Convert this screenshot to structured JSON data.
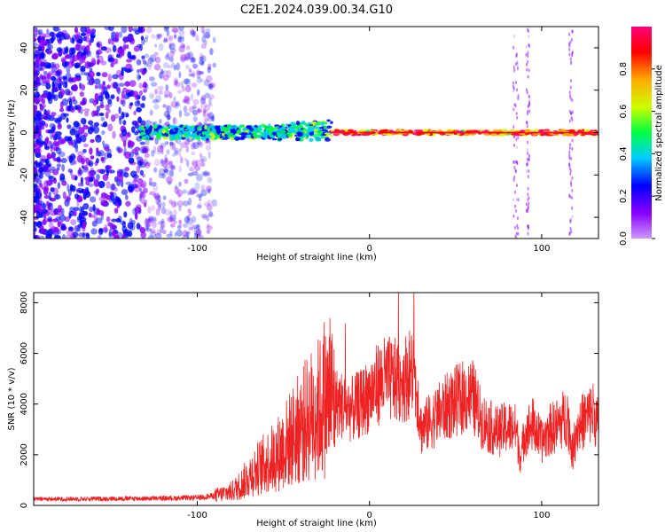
{
  "title": "C2E1.2024.039.00.34.G10",
  "chart_data": [
    {
      "type": "heatmap",
      "xlabel": "Height of straight line (km)",
      "ylabel": "Frequency (Hz)",
      "xlim": [
        -195,
        133
      ],
      "ylim": [
        -50,
        50
      ],
      "xticks": [
        -100,
        0,
        100
      ],
      "yticks": [
        -40,
        -20,
        0,
        20,
        40
      ],
      "grid": false,
      "colorbar": {
        "label": "Normalized spectral amplitude",
        "range": [
          0,
          1
        ],
        "ticks": [
          0.0,
          0.2,
          0.4,
          0.6,
          0.8
        ],
        "colormap": [
          "#cc99ff",
          "#8800ff",
          "#0000ff",
          "#00ccff",
          "#00ff44",
          "#ccff00",
          "#ffaa00",
          "#ff0000",
          "#ff0077"
        ]
      },
      "description_regions": [
        {
          "x_range": [
            -195,
            -95
          ],
          "freq_range": [
            -50,
            50
          ],
          "amplitude": "0.1-0.3",
          "note": "broadband scattered noise"
        },
        {
          "x_range": [
            -133,
            -22
          ],
          "freq_range": [
            -4,
            10
          ],
          "amplitude": "0.2-0.6",
          "note": "narrowband signal, wandering Doppler"
        },
        {
          "x_range": [
            -22,
            133
          ],
          "freq_range": [
            -1,
            1
          ],
          "amplitude": "0.6-1.0",
          "note": "strong carrier line at ~0 Hz"
        },
        {
          "x_range": [
            84,
            96
          ],
          "freq_range": [
            -50,
            50
          ],
          "amplitude": "0.1-0.2",
          "note": "faint vertical streaks"
        },
        {
          "x_range": [
            114,
            119
          ],
          "freq_range": [
            -50,
            50
          ],
          "amplitude": "0.1-0.2",
          "note": "faint vertical streak"
        }
      ]
    },
    {
      "type": "line",
      "xlabel": "Height of straight line (km)",
      "ylabel": "SNR (10 * v/v)",
      "xlim": [
        -195,
        133
      ],
      "ylim": [
        0,
        8400
      ],
      "xticks": [
        -100,
        0,
        100
      ],
      "yticks": [
        0,
        2000,
        4000,
        6000,
        8000
      ],
      "grid": false,
      "series": [
        {
          "color": "#ee2222",
          "x": [
            -195,
            -180,
            -160,
            -140,
            -120,
            -100,
            -90,
            -80,
            -75,
            -70,
            -65,
            -60,
            -55,
            -50,
            -45,
            -40,
            -35,
            -30,
            -25,
            -22,
            -20,
            -15,
            -10,
            -5,
            0,
            5,
            10,
            15,
            20,
            25,
            28,
            30,
            35,
            40,
            45,
            50,
            55,
            60,
            65,
            70,
            75,
            80,
            85,
            88,
            90,
            95,
            100,
            105,
            110,
            115,
            118,
            120,
            125,
            130,
            133
          ],
          "y": [
            250,
            250,
            260,
            270,
            280,
            300,
            380,
            550,
            800,
            1150,
            1450,
            1700,
            1900,
            2300,
            2700,
            3100,
            3500,
            3800,
            4100,
            4300,
            4100,
            3900,
            3800,
            4000,
            4400,
            4800,
            5000,
            4900,
            5000,
            5300,
            4400,
            3000,
            3300,
            3600,
            3900,
            4100,
            4300,
            4300,
            3400,
            3100,
            2900,
            3100,
            3000,
            1800,
            2900,
            3200,
            2500,
            3000,
            3200,
            3600,
            2000,
            3000,
            3400,
            3700,
            3100
          ]
        }
      ]
    }
  ]
}
